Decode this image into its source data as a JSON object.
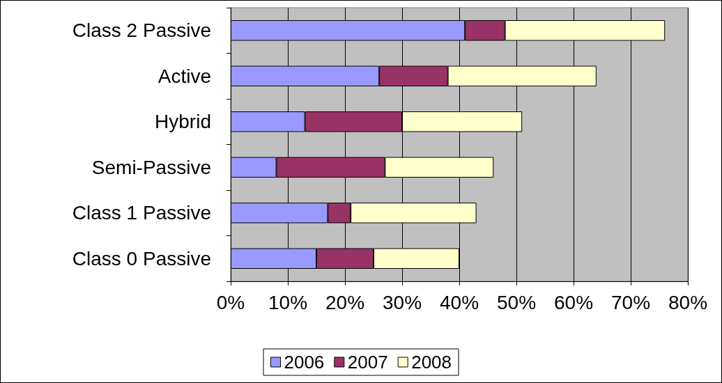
{
  "chart_data": {
    "type": "bar",
    "orientation": "horizontal",
    "stacked": true,
    "categories": [
      "Class 2 Passive",
      "Active",
      "Hybrid",
      "Semi-Passive",
      "Class 1 Passive",
      "Class 0 Passive"
    ],
    "series": [
      {
        "name": "2006",
        "color": "#9999ff",
        "values": [
          41,
          26,
          13,
          8,
          17,
          15
        ]
      },
      {
        "name": "2007",
        "color": "#993366",
        "values": [
          7,
          12,
          17,
          19,
          4,
          10
        ]
      },
      {
        "name": "2008",
        "color": "#ffffcc",
        "values": [
          28,
          26,
          21,
          19,
          22,
          15
        ]
      }
    ],
    "xlim": [
      0,
      80
    ],
    "xticks": [
      {
        "value": 0,
        "label": "0%"
      },
      {
        "value": 10,
        "label": "10%"
      },
      {
        "value": 20,
        "label": "20%"
      },
      {
        "value": 30,
        "label": "30%"
      },
      {
        "value": 40,
        "label": "40%"
      },
      {
        "value": 50,
        "label": "50%"
      },
      {
        "value": 60,
        "label": "60%"
      },
      {
        "value": 70,
        "label": "70%"
      },
      {
        "value": 80,
        "label": "80%"
      }
    ],
    "grid": "x",
    "legend": "bottom"
  }
}
